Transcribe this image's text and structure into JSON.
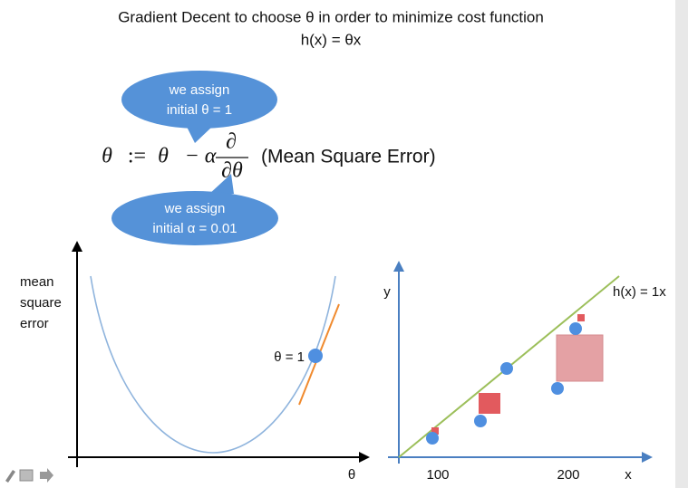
{
  "header": {
    "title": "Gradient Decent to choose θ in order to minimize cost function",
    "subtitle": "h(x) = θx"
  },
  "bubbles": [
    {
      "lines": [
        "we assign",
        "initial θ = 1"
      ]
    },
    {
      "lines": [
        "we assign",
        "initial α = 0.01"
      ]
    }
  ],
  "formula": {
    "lhs": "θ",
    "assign": ":=",
    "theta": "θ",
    "minus_alpha": "− α",
    "numerator": "∂",
    "denominator": "∂θ",
    "text": "(Mean Square Error)"
  },
  "left_plot": {
    "ylabel": [
      "mean",
      "square",
      "error"
    ],
    "xlabel": "θ",
    "point_label": "θ = 1"
  },
  "right_plot": {
    "ylabel": "y",
    "xlabel": "x",
    "line_label": "h(x) = 1x",
    "xticks": [
      100,
      200
    ]
  }
}
